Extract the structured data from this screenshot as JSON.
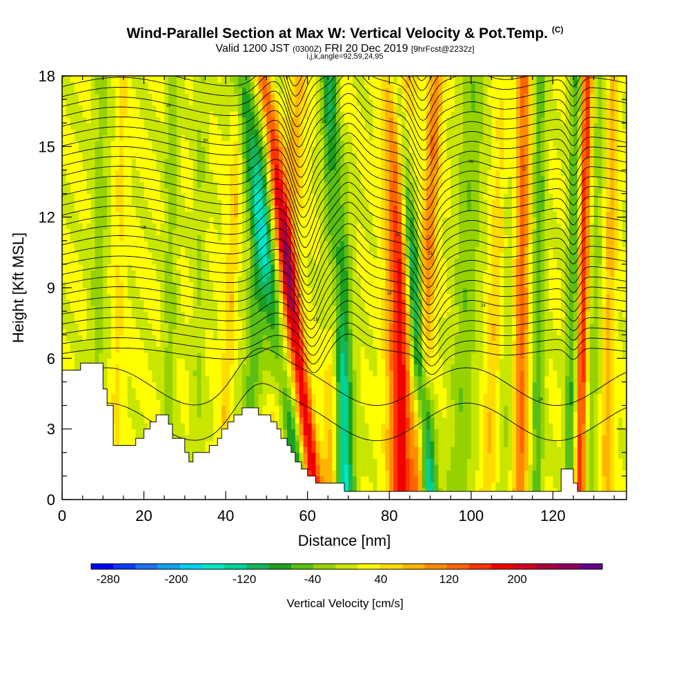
{
  "header": {
    "title": "Wind-Parallel Section at Max W: Vertical Velocity & Pot.Temp.",
    "copyright": "(C)",
    "valid_prefix": "Valid 1200 JST",
    "valid_utc": "(0300Z)",
    "valid_date": "FRI 20 Dec 2019",
    "forecast": "[9hrFcst@2232z]",
    "indices": "i,j,k,angle=92,59,24,95"
  },
  "chart_data": {
    "type": "heatmap",
    "title": "Wind-Parallel Section at Max W: Vertical Velocity & Pot.Temp.",
    "xlabel": "Distance [nm]",
    "ylabel": "Height [Kft MSL]",
    "xlim": [
      0,
      138
    ],
    "ylim": [
      0,
      18
    ],
    "x_ticks": [
      0,
      20,
      40,
      60,
      80,
      100,
      120
    ],
    "y_ticks": [
      0,
      3,
      6,
      9,
      12,
      15,
      18
    ],
    "colorbar": {
      "label": "Vertical Velocity [cm/s]",
      "tick_labels": [
        -280,
        -200,
        -120,
        -40,
        40,
        120,
        200
      ],
      "range": [
        -300,
        300
      ],
      "colors": [
        "#0000ff",
        "#0a3cf5",
        "#1e6ef5",
        "#14a0f0",
        "#00d0f0",
        "#00e6c8",
        "#00d296",
        "#14b45a",
        "#1ea01e",
        "#5abe14",
        "#96d200",
        "#c8e600",
        "#ffff00",
        "#ffdc00",
        "#ffb400",
        "#ff8c00",
        "#ff6400",
        "#ff3200",
        "#f00000",
        "#d2001e",
        "#aa003c",
        "#8c005a",
        "#64008c"
      ]
    },
    "velocity_bands": [
      {
        "x_base": 8,
        "tilt": 0.1,
        "width": 2.0,
        "value": -40
      },
      {
        "x_base": 13,
        "tilt": 0.1,
        "width": 1.5,
        "value": 30
      },
      {
        "x_base": 26,
        "tilt": 0.05,
        "width": 1.5,
        "value": -45
      },
      {
        "x_base": 33,
        "tilt": 0.06,
        "width": 1.5,
        "value": -30
      },
      {
        "x_base": 39,
        "tilt": 0.25,
        "width": 1.5,
        "value": 50
      },
      {
        "x_base": 45,
        "tilt": 0.3,
        "width": 2.5,
        "value": -70
      },
      {
        "x_base": 52,
        "tilt": 0.32,
        "width": 2.5,
        "value": 60
      },
      {
        "x_base": 58,
        "tilt": -0.8,
        "width": 2.5,
        "value": -110
      },
      {
        "x_base": 62,
        "tilt": -0.7,
        "width": 2.0,
        "value": 180
      },
      {
        "x_base": 69,
        "tilt": -0.15,
        "width": 2.5,
        "value": -180
      },
      {
        "x_base": 66,
        "tilt": 0.1,
        "width": 2.0,
        "value": 110
      },
      {
        "x_base": 83,
        "tilt": -0.05,
        "width": 3.0,
        "value": 170
      },
      {
        "x_base": 90,
        "tilt": -0.45,
        "width": 2.0,
        "value": -170
      },
      {
        "x_base": 87,
        "tilt": 0.25,
        "width": 1.8,
        "value": 100
      },
      {
        "x_base": 97,
        "tilt": 0.2,
        "width": 3.0,
        "value": -50
      },
      {
        "x_base": 104,
        "tilt": 0.25,
        "width": 2.0,
        "value": 50
      },
      {
        "x_base": 108,
        "tilt": 0.05,
        "width": 2.0,
        "value": -30
      },
      {
        "x_base": 112,
        "tilt": 0.05,
        "width": 1.8,
        "value": 110
      },
      {
        "x_base": 116,
        "tilt": 0.05,
        "width": 1.5,
        "value": -70
      },
      {
        "x_base": 124,
        "tilt": 0.1,
        "width": 1.5,
        "value": -80
      },
      {
        "x_base": 126.5,
        "tilt": 0.1,
        "width": 1.3,
        "value": 150
      },
      {
        "x_base": 129,
        "tilt": 0.15,
        "width": 1.5,
        "value": -40
      },
      {
        "x_base": 133,
        "tilt": 0.1,
        "width": 1.5,
        "value": 60
      }
    ],
    "terrain_kft": [
      [
        0,
        5.5
      ],
      [
        4.5,
        5.5
      ],
      [
        4.5,
        5.8
      ],
      [
        10,
        5.8
      ],
      [
        10,
        4.7
      ],
      [
        11,
        4.7
      ],
      [
        11,
        4.0
      ],
      [
        12.5,
        4.0
      ],
      [
        12.5,
        2.3
      ],
      [
        18,
        2.3
      ],
      [
        18,
        2.6
      ],
      [
        20,
        2.6
      ],
      [
        20,
        3.0
      ],
      [
        21.5,
        3.0
      ],
      [
        21.5,
        3.3
      ],
      [
        23,
        3.3
      ],
      [
        23,
        3.6
      ],
      [
        26,
        3.6
      ],
      [
        26,
        3.2
      ],
      [
        27,
        3.2
      ],
      [
        27,
        2.6
      ],
      [
        30,
        2.6
      ],
      [
        30,
        2.0
      ],
      [
        31,
        2.0
      ],
      [
        31,
        1.6
      ],
      [
        32,
        1.6
      ],
      [
        32,
        2.0
      ],
      [
        36,
        2.0
      ],
      [
        36,
        2.3
      ],
      [
        38,
        2.3
      ],
      [
        38,
        2.6
      ],
      [
        39,
        2.6
      ],
      [
        39,
        3.0
      ],
      [
        40.5,
        3.0
      ],
      [
        40.5,
        3.3
      ],
      [
        42,
        3.3
      ],
      [
        42,
        3.6
      ],
      [
        44,
        3.6
      ],
      [
        44,
        3.9
      ],
      [
        48,
        3.9
      ],
      [
        48,
        3.6
      ],
      [
        51,
        3.6
      ],
      [
        51,
        3.3
      ],
      [
        52.5,
        3.3
      ],
      [
        52.5,
        3.0
      ],
      [
        53.5,
        3.0
      ],
      [
        53.5,
        2.6
      ],
      [
        55,
        2.6
      ],
      [
        55,
        2.3
      ],
      [
        56,
        2.3
      ],
      [
        56,
        2.0
      ],
      [
        57,
        2.0
      ],
      [
        57,
        1.6
      ],
      [
        58.5,
        1.6
      ],
      [
        58.5,
        1.3
      ],
      [
        60,
        1.3
      ],
      [
        60,
        1.0
      ],
      [
        62,
        1.0
      ],
      [
        62,
        0.7
      ],
      [
        69,
        0.7
      ],
      [
        69,
        0.35
      ],
      [
        122,
        0.35
      ],
      [
        122,
        1.3
      ],
      [
        125,
        1.3
      ],
      [
        125,
        0.7
      ],
      [
        126,
        0.7
      ],
      [
        126,
        0.35
      ],
      [
        138,
        0.35
      ]
    ],
    "contour_labels": [
      "12",
      "15",
      "18",
      "21",
      "24",
      "27",
      "30",
      "33",
      "36"
    ]
  },
  "ui": {
    "dark": "#000000",
    "label_bg": "#ffffff",
    "terrain": "#ffffff"
  }
}
